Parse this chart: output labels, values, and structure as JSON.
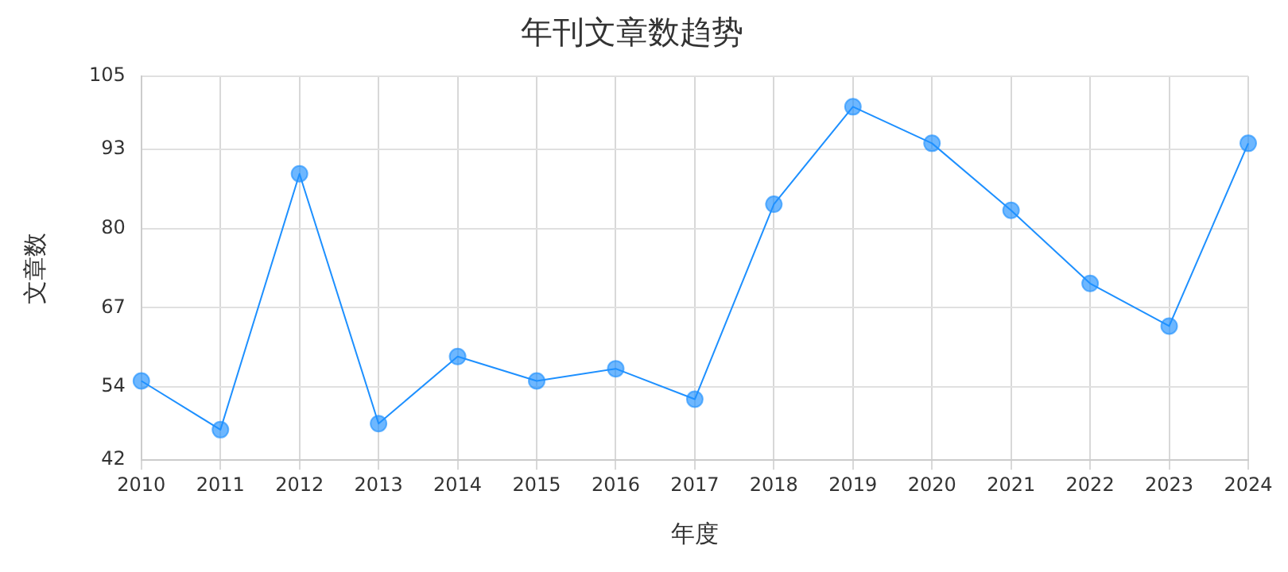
{
  "chart_data": {
    "type": "line",
    "title": "年刊文章数趋势",
    "xlabel": "年度",
    "ylabel": "文章数",
    "categories": [
      "2010",
      "2011",
      "2012",
      "2013",
      "2014",
      "2015",
      "2016",
      "2017",
      "2018",
      "2019",
      "2020",
      "2021",
      "2022",
      "2023",
      "2024"
    ],
    "series": [
      {
        "color": "#1e90ff",
        "values": [
          55,
          47,
          89,
          48,
          59,
          55,
          57,
          52,
          84,
          100,
          94,
          83,
          71,
          64,
          94
        ]
      }
    ],
    "ylim": [
      42,
      105
    ],
    "yticks": [
      42,
      54,
      67,
      80,
      93,
      105
    ],
    "grid": true,
    "legend": false,
    "marker": "circle",
    "line_style": "solid"
  }
}
